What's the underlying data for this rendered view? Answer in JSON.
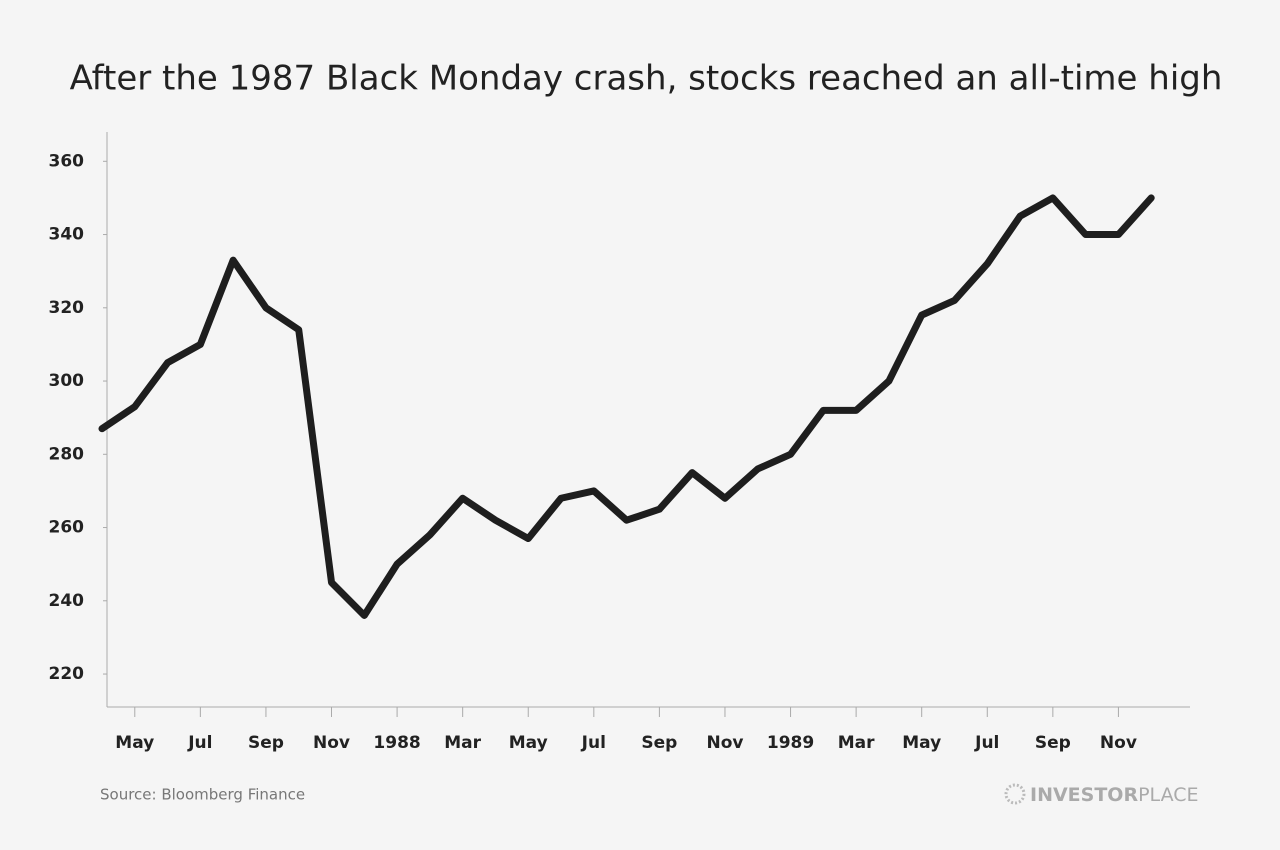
{
  "chart_data": {
    "type": "line",
    "title": "After the 1987 Black Monday crash, stocks reached an all-time high",
    "x": [
      "1987-04",
      "1987-05",
      "1987-06",
      "1987-07",
      "1987-08",
      "1987-09",
      "1987-10",
      "1987-11",
      "1987-12",
      "1988-01",
      "1988-02",
      "1988-03",
      "1988-04",
      "1988-05",
      "1988-06",
      "1988-07",
      "1988-08",
      "1988-09",
      "1988-10",
      "1988-11",
      "1988-12",
      "1989-01",
      "1989-02",
      "1989-03",
      "1989-04",
      "1989-05",
      "1989-06",
      "1989-07",
      "1989-08",
      "1989-09",
      "1989-10",
      "1989-11",
      "1989-12"
    ],
    "series": [
      {
        "color": "#1e1e1e",
        "values": [
          287,
          293,
          305,
          310,
          333,
          320,
          314,
          245,
          236,
          250,
          258,
          268,
          262,
          257,
          268,
          270,
          262,
          265,
          275,
          268,
          276,
          280,
          292,
          292,
          300,
          318,
          322,
          332,
          345,
          350,
          340,
          340,
          350
        ]
      }
    ],
    "xlim": [
      "1987-04",
      "1990-01"
    ],
    "xticks": [
      {
        "value": "1987-05",
        "label": "May"
      },
      {
        "value": "1987-07",
        "label": "Jul"
      },
      {
        "value": "1987-09",
        "label": "Sep"
      },
      {
        "value": "1987-11",
        "label": "Nov"
      },
      {
        "value": "1988-01",
        "label": "1988"
      },
      {
        "value": "1988-03",
        "label": "Mar"
      },
      {
        "value": "1988-05",
        "label": "May"
      },
      {
        "value": "1988-07",
        "label": "Jul"
      },
      {
        "value": "1988-09",
        "label": "Sep"
      },
      {
        "value": "1988-11",
        "label": "Nov"
      },
      {
        "value": "1989-01",
        "label": "1989"
      },
      {
        "value": "1989-03",
        "label": "Mar"
      },
      {
        "value": "1989-05",
        "label": "May"
      },
      {
        "value": "1989-07",
        "label": "Jul"
      },
      {
        "value": "1989-09",
        "label": "Sep"
      },
      {
        "value": "1989-11",
        "label": "Nov"
      }
    ],
    "ylim": [
      211,
      368
    ],
    "yticks": [
      220,
      240,
      260,
      280,
      300,
      320,
      340,
      360
    ],
    "source": "Source: Bloomberg Finance",
    "brand": {
      "bold": "INVESTOR",
      "light": "PLACE"
    }
  }
}
